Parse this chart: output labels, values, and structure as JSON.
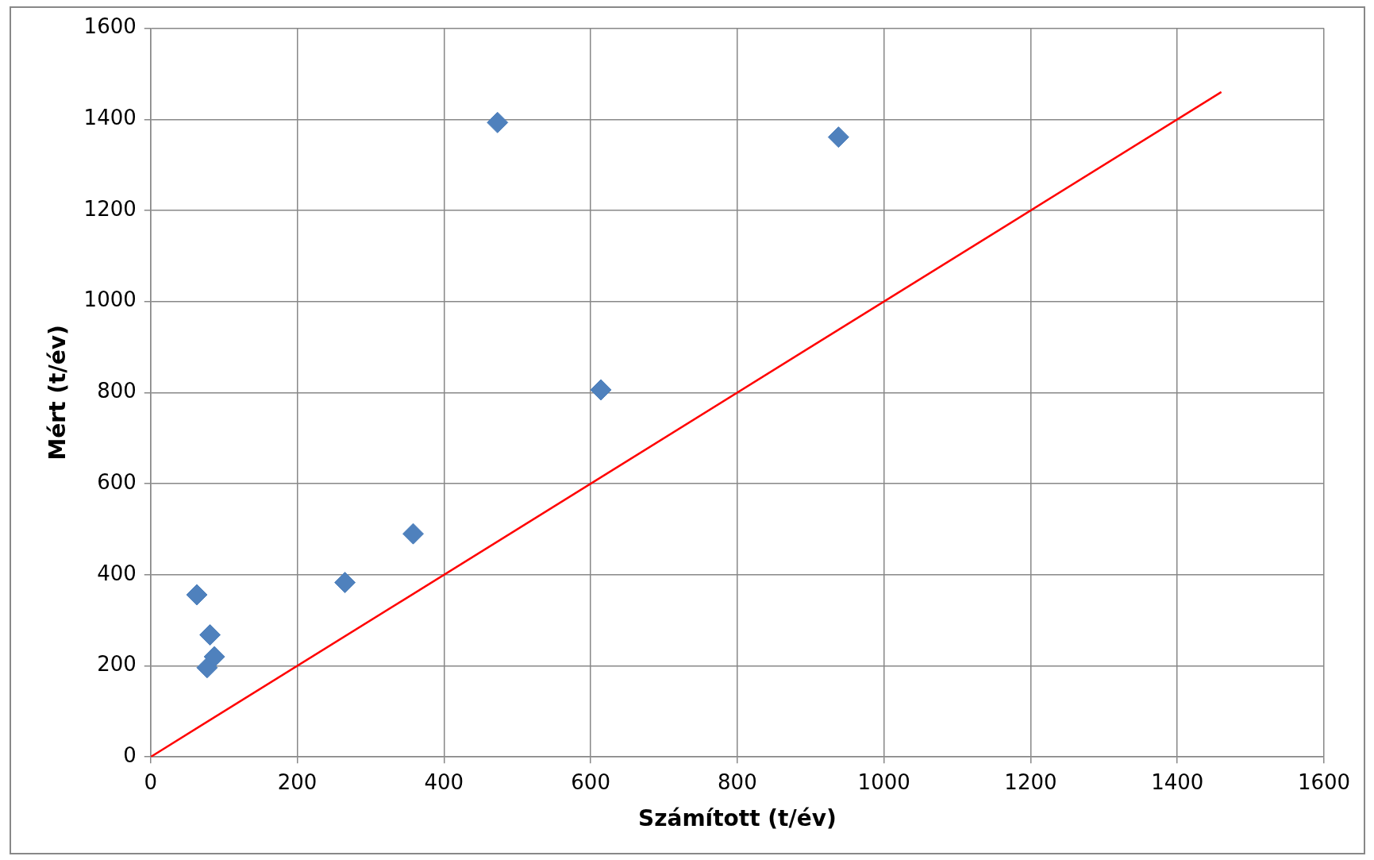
{
  "chart_data": {
    "type": "scatter",
    "xlabel": "Számított (t/év)",
    "ylabel": "Mért (t/év)",
    "xlim": [
      0,
      1600
    ],
    "ylim": [
      0,
      1600
    ],
    "xticks": [
      0,
      200,
      400,
      600,
      800,
      1000,
      1200,
      1400,
      1600
    ],
    "yticks": [
      0,
      200,
      400,
      600,
      800,
      1000,
      1200,
      1400,
      1600
    ],
    "grid": true,
    "legend": false,
    "marker": "diamond",
    "series": [
      {
        "color": "#4f81bd",
        "x": [
          63,
          81,
          77,
          87,
          265,
          358,
          473,
          614,
          938
        ],
        "values": [
          356,
          268,
          196,
          220,
          383,
          490,
          1393,
          806,
          1361
        ]
      },
      {
        "type": "line",
        "color": "#ff0000",
        "marker": "none",
        "line_style": "solid",
        "x": [
          0,
          1460
        ],
        "values": [
          0,
          1460
        ]
      }
    ]
  }
}
